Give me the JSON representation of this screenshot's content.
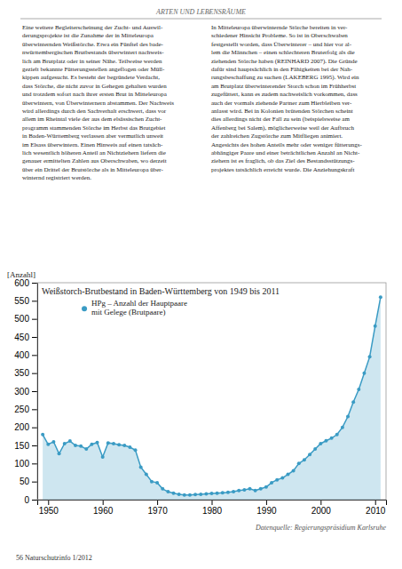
{
  "chart_data": {
    "type": "area",
    "title": "Weißstorch-Brutbestand in Baden-Württemberg von 1949 bis 2011",
    "ylabel": "[Anzahl]",
    "annotations": [
      "ARTEN UND LEBENSRÄUME",
      "Eine weitere Begleiterscheinung der Zucht- und Auswil-\nderungsprojekte ist die Zunahme der in Mitteleuropa\nüberwinternden Weißstörche. Etwa ein Fünftel des bade-\nnwürttembergischen Brutbestands überwintert nachweis-\nlich am Brutplatz oder in seiner Nähe. Teilweise werden\ngezielt bekannte Fütterungsstellen angeflogen oder Müll-\nkippen aufgesucht. Es besteht der begründete Verdacht,\ndass Störche, die nicht zuvor in Gehegen gehalten wurden\nund trotzdem sofort nach ihrer ersten Brut in Mitteleuropa\nüberwintern, von Überwinternern abstammen. Der Nachweis\nwird allerdings durch den Sachverhalt erschwert, dass vor\nallem im Rheintal viele der aus dem elsässischen Zucht-\nprogramm stammenden Störche im Herbst das Brutgebiet\nin Baden-Württemberg verlassen aber vermutlich unweit\nim Elsass überwintern. Einen Hinweis auf einen tatsäch-\nlich wesentlich höheren Anteil an Nichtziehern liefern die\ngenauer ermittelten Zahlen aus Oberschwaben, wo derzeit\nüber ein Drittel der Brutstörche als in Mitteleuropa über-\nwinternd registriert werden.",
      "In Mitteleuropa überwinternde Störche bereiten in ver-\nschiedener Hinsicht Probleme. So ist in Oberschwaben\nfestgestellt worden, dass Überwinterer – und hier vor al-\nlem die Männchen – einen schlechteren Bruterfolg als die\nziehenden Störche haben (REINHARD 2007). Die Gründe\ndafür sind hauptsächlich in den Fähigkeiten bei der Nah-\nrungsbeschaffung zu suchen (LAKEBERG 1995). Wird ein\nam Brutplatz überwinterender Storch schon im Frühherbst\nzugefüttert, kann es zudem nachweislich vorkommen, dass\nauch der vormals ziehende Partner zum Hierbleiben ver-\nanlasst wird. Bei in Kolonien brütenden Störchen scheint\ndies allerdings nicht der Fall zu sein (beispielsweise am\nAffenberg bei Salem), möglicherweise weil der Aufbruch\nder zahlreichen Zugstörche zum Mitfliegen animiert.\n\nAngesichts des hohen Anteils mehr oder weniger fütterungs-\nabhängiger Paare und einer beträchtlichen Anzahl an Nicht-\nziehern ist es fraglich, ob das Ziel des Bestandsstützungs-\nprojektes tatsächlich erreicht wurde. Die Anziehungskraft",
      "Datenquelle: Regierungspräsidium Karlsruhe",
      "56  Naturschutzinfo 1/2012"
    ],
    "x": [
      1949,
      1950,
      1951,
      1952,
      1953,
      1954,
      1955,
      1956,
      1957,
      1958,
      1959,
      1960,
      1961,
      1962,
      1963,
      1964,
      1965,
      1966,
      1967,
      1968,
      1969,
      1970,
      1971,
      1972,
      1973,
      1974,
      1975,
      1976,
      1977,
      1978,
      1979,
      1980,
      1981,
      1982,
      1983,
      1984,
      1985,
      1986,
      1987,
      1988,
      1989,
      1990,
      1991,
      1992,
      1993,
      1994,
      1995,
      1996,
      1997,
      1998,
      1999,
      2000,
      2001,
      2002,
      2003,
      2004,
      2005,
      2006,
      2007,
      2008,
      2009,
      2010,
      2011
    ],
    "series": [
      {
        "name": "HPg – Anzahl der Hauptpaare\nmit Gelege (Brutpaare)",
        "color": "#3a9bc4",
        "marker": "circle",
        "values": [
          180,
          153,
          160,
          127,
          155,
          162,
          150,
          148,
          140,
          153,
          158,
          118,
          157,
          155,
          152,
          150,
          145,
          137,
          90,
          70,
          50,
          47,
          30,
          22,
          18,
          15,
          13,
          13,
          14,
          15,
          16,
          17,
          18,
          19,
          20,
          22,
          25,
          27,
          30,
          25,
          30,
          35,
          47,
          55,
          60,
          70,
          80,
          100,
          110,
          125,
          140,
          155,
          163,
          170,
          180,
          200,
          230,
          270,
          305,
          350,
          395,
          480,
          560
        ]
      }
    ],
    "xlim": [
      1948,
      2012
    ],
    "xticks": [
      1950,
      1960,
      1970,
      1980,
      1990,
      2000,
      2010
    ],
    "ylim": [
      0,
      600
    ],
    "yticks": [
      0,
      50,
      100,
      150,
      200,
      250,
      300,
      350,
      400,
      450,
      500,
      550,
      600
    ],
    "grid": false
  }
}
